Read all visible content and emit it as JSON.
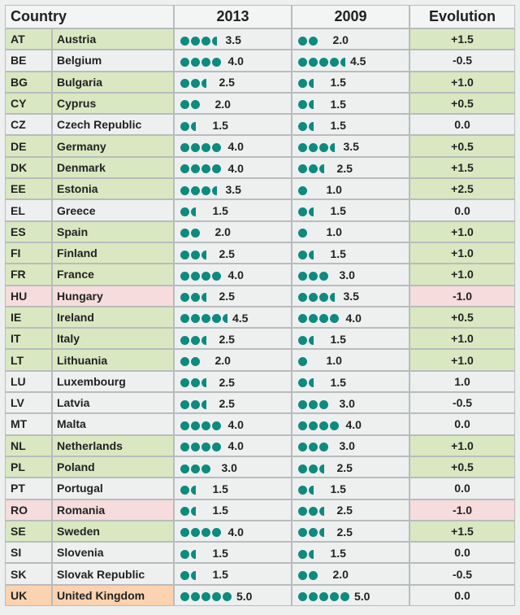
{
  "headers": {
    "country": "Country",
    "y2013": "2013",
    "y2009": "2009",
    "evolution": "Evolution"
  },
  "colors": {
    "dot": "#0e8a7e",
    "positive": "#d9e8c1",
    "negative": "#f6dcdc",
    "highlight_uk": "#fbd3b0",
    "neutral": "#eef0f0"
  },
  "chart_data": {
    "type": "table",
    "columns": [
      "Country",
      "2013",
      "2009",
      "Evolution"
    ],
    "rows": [
      {
        "code": "AT",
        "name": "Austria",
        "r2013": 3.5,
        "t2013": "3.5",
        "r2009": 2.0,
        "t2009": "2.0",
        "evo": "+1.5"
      },
      {
        "code": "BE",
        "name": "Belgium",
        "r2013": 4.0,
        "t2013": "4.0",
        "r2009": 4.5,
        "t2009": "4.5",
        "evo": "-0.5"
      },
      {
        "code": "BG",
        "name": "Bulgaria",
        "r2013": 2.5,
        "t2013": "2.5",
        "r2009": 1.5,
        "t2009": "1.5",
        "evo": "+1.0"
      },
      {
        "code": "CY",
        "name": "Cyprus",
        "r2013": 2.0,
        "t2013": "2.0",
        "r2009": 1.5,
        "t2009": "1.5",
        "evo": "+0.5"
      },
      {
        "code": "CZ",
        "name": "Czech Republic",
        "r2013": 1.5,
        "t2013": "1.5",
        "r2009": 1.5,
        "t2009": "1.5",
        "evo": "0.0"
      },
      {
        "code": "DE",
        "name": "Germany",
        "r2013": 4.0,
        "t2013": "4.0",
        "r2009": 3.5,
        "t2009": "3.5",
        "evo": "+0.5"
      },
      {
        "code": "DK",
        "name": "Denmark",
        "r2013": 4.0,
        "t2013": "4.0",
        "r2009": 2.5,
        "t2009": "2.5",
        "evo": "+1.5"
      },
      {
        "code": "EE",
        "name": "Estonia",
        "r2013": 3.5,
        "t2013": "3.5",
        "r2009": 1.0,
        "t2009": "1.0",
        "evo": "+2.5"
      },
      {
        "code": "EL",
        "name": "Greece",
        "r2013": 1.5,
        "t2013": "1.5",
        "r2009": 1.5,
        "t2009": "1.5",
        "evo": "0.0"
      },
      {
        "code": "ES",
        "name": "Spain",
        "r2013": 2.0,
        "t2013": "2.0",
        "r2009": 1.0,
        "t2009": "1.0",
        "evo": "+1.0"
      },
      {
        "code": "FI",
        "name": "Finland",
        "r2013": 2.5,
        "t2013": "2.5",
        "r2009": 1.5,
        "t2009": "1.5",
        "evo": "+1.0"
      },
      {
        "code": "FR",
        "name": "France",
        "r2013": 4.0,
        "t2013": "4.0",
        "r2009": 3.0,
        "t2009": "3.0",
        "evo": "+1.0"
      },
      {
        "code": "HU",
        "name": "Hungary",
        "r2013": 2.5,
        "t2013": "2.5",
        "r2009": 3.5,
        "t2009": "3.5",
        "evo": "-1.0"
      },
      {
        "code": "IE",
        "name": "Ireland",
        "r2013": 4.5,
        "t2013": "4.5",
        "r2009": 4.0,
        "t2009": "4.0",
        "evo": "+0.5"
      },
      {
        "code": "IT",
        "name": "Italy",
        "r2013": 2.5,
        "t2013": "2.5",
        "r2009": 1.5,
        "t2009": "1.5",
        "evo": "+1.0"
      },
      {
        "code": "LT",
        "name": "Lithuania",
        "r2013": 2.0,
        "t2013": "2.0",
        "r2009": 1.0,
        "t2009": "1.0",
        "evo": "+1.0"
      },
      {
        "code": "LU",
        "name": "Luxembourg",
        "r2013": 2.5,
        "t2013": "2.5",
        "r2009": 1.5,
        "t2009": "1.5",
        "evo": "1.0"
      },
      {
        "code": "LV",
        "name": "Latvia",
        "r2013": 2.5,
        "t2013": "2.5",
        "r2009": 3.0,
        "t2009": "3.0",
        "evo": "-0.5"
      },
      {
        "code": "MT",
        "name": "Malta",
        "r2013": 4.0,
        "t2013": "4.0",
        "r2009": 4.0,
        "t2009": "4.0",
        "evo": "0.0"
      },
      {
        "code": "NL",
        "name": "Netherlands",
        "r2013": 4.0,
        "t2013": "4.0",
        "r2009": 3.0,
        "t2009": "3.0",
        "evo": "+1.0"
      },
      {
        "code": "PL",
        "name": "Poland",
        "r2013": 3.0,
        "t2013": "3.0",
        "r2009": 2.5,
        "t2009": "2.5",
        "evo": "+0.5"
      },
      {
        "code": "PT",
        "name": "Portugal",
        "r2013": 1.5,
        "t2013": "1.5",
        "r2009": 1.5,
        "t2009": "1.5",
        "evo": "0.0"
      },
      {
        "code": "RO",
        "name": "Romania",
        "r2013": 1.5,
        "t2013": "1.5",
        "r2009": 2.5,
        "t2009": "2.5",
        "evo": "-1.0"
      },
      {
        "code": "SE",
        "name": "Sweden",
        "r2013": 4.0,
        "t2013": "4.0",
        "r2009": 2.5,
        "t2009": "2.5",
        "evo": "+1.5"
      },
      {
        "code": "SI",
        "name": "Slovenia",
        "r2013": 1.5,
        "t2013": "1.5",
        "r2009": 1.5,
        "t2009": "1.5",
        "evo": "0.0"
      },
      {
        "code": "SK",
        "name": "Slovak Republic",
        "r2013": 1.5,
        "t2013": "1.5",
        "r2009": 2.0,
        "t2009": "2.0",
        "evo": "-0.5"
      },
      {
        "code": "UK",
        "name": "United Kingdom",
        "r2013": 5.0,
        "t2013": "5.0",
        "r2009": 5.0,
        "t2009": "5.0",
        "evo": "0.0",
        "highlight": true
      }
    ]
  }
}
